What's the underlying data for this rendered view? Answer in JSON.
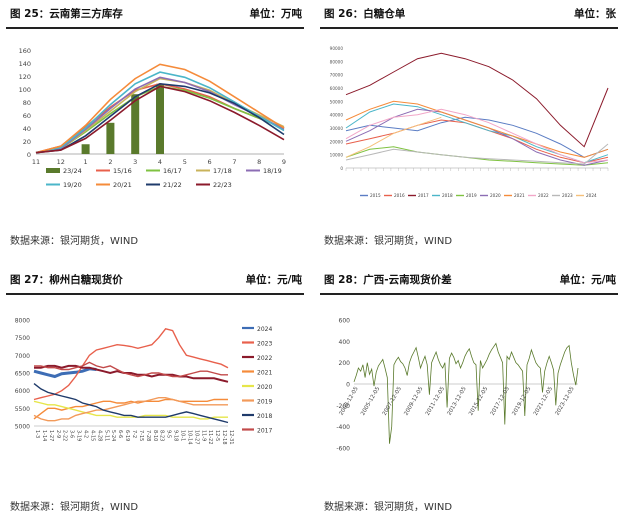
{
  "panels": {
    "p25": {
      "title": "图 25：云南第三方库存",
      "unit": "单位：万吨",
      "source": "数据来源：银河期货，WIND"
    },
    "p26": {
      "title": "图 26：白糖仓单",
      "unit": "单位：张",
      "source": "数据来源：银河期货，WIND"
    },
    "p27": {
      "title": "图 27：柳州白糖现货价",
      "unit": "单位：元/吨",
      "source": "数据来源：银河期货，WIND"
    },
    "p28": {
      "title": "图 28：广西-云南现货价差",
      "unit": "单位：元/吨",
      "source": "数据来源：银河期货，WIND"
    }
  },
  "chart_data": [
    {
      "id": "c25",
      "type": "line",
      "title": "",
      "categories": [
        "11",
        "12",
        "1",
        "2",
        "3",
        "4",
        "5",
        "6",
        "7",
        "8",
        "9"
      ],
      "ylim": [
        0,
        160
      ],
      "yticks": [
        0,
        20,
        40,
        60,
        80,
        100,
        120,
        140,
        160
      ],
      "grid": false,
      "legend": "bottom",
      "bar_series": {
        "name": "23/24",
        "color": "#5a7a2c",
        "values": [
          null,
          null,
          15,
          48,
          92,
          108,
          null,
          null,
          null,
          null,
          null
        ]
      },
      "series": [
        {
          "name": "15/16",
          "color": "#e8604c",
          "values": [
            2,
            12,
            42,
            72,
            98,
            108,
            100,
            88,
            70,
            55,
            40
          ]
        },
        {
          "name": "16/17",
          "color": "#7fc241",
          "values": [
            2,
            8,
            34,
            62,
            88,
            104,
            98,
            86,
            70,
            55,
            40
          ]
        },
        {
          "name": "17/18",
          "color": "#c9b35b",
          "values": [
            2,
            8,
            36,
            66,
            96,
            116,
            110,
            98,
            78,
            60,
            42
          ]
        },
        {
          "name": "18/19",
          "color": "#8c6db4",
          "values": [
            2,
            8,
            38,
            70,
            100,
            118,
            110,
            96,
            76,
            58,
            38
          ]
        },
        {
          "name": "19/20",
          "color": "#4bb6c9",
          "values": [
            2,
            10,
            40,
            76,
            108,
            126,
            118,
            102,
            80,
            58,
            36
          ]
        },
        {
          "name": "20/21",
          "color": "#f58b3a",
          "values": [
            2,
            12,
            44,
            84,
            116,
            138,
            130,
            112,
            88,
            64,
            40
          ]
        },
        {
          "name": "21/22",
          "color": "#1f3b6b",
          "values": [
            2,
            6,
            28,
            58,
            88,
            108,
            104,
            94,
            78,
            56,
            30
          ]
        },
        {
          "name": "22/23",
          "color": "#8b1a2b",
          "values": [
            2,
            6,
            24,
            52,
            82,
            104,
            96,
            82,
            64,
            44,
            22
          ]
        }
      ]
    },
    {
      "id": "c26",
      "type": "line",
      "title": "",
      "ylim": [
        0,
        90000
      ],
      "yticks": [
        0,
        10000,
        20000,
        30000,
        40000,
        50000,
        60000,
        70000,
        80000,
        90000
      ],
      "grid": false,
      "legend": "bottom",
      "series": [
        {
          "name": "2015",
          "color": "#5b7dc4",
          "values": [
            28000,
            32000,
            30000,
            28000,
            34000,
            38000,
            36000,
            32000,
            26000,
            18000,
            8000,
            14000
          ]
        },
        {
          "name": "2016",
          "color": "#e8604c",
          "values": [
            18000,
            22000,
            26000,
            32000,
            36000,
            34000,
            28000,
            22000,
            14000,
            8000,
            4000,
            8000
          ]
        },
        {
          "name": "2017",
          "color": "#8b1a2b",
          "values": [
            55000,
            62000,
            72000,
            82000,
            86000,
            82000,
            76000,
            66000,
            52000,
            32000,
            16000,
            60000
          ]
        },
        {
          "name": "2018",
          "color": "#4bb6c9",
          "values": [
            30000,
            42000,
            48000,
            46000,
            40000,
            34000,
            28000,
            24000,
            16000,
            10000,
            4000,
            10000
          ]
        },
        {
          "name": "2019",
          "color": "#7fc241",
          "values": [
            8000,
            14000,
            16000,
            12000,
            10000,
            8000,
            6000,
            5000,
            4000,
            3000,
            2000,
            4000
          ]
        },
        {
          "name": "2020",
          "color": "#8c6db4",
          "values": [
            20000,
            28000,
            38000,
            44000,
            42000,
            36000,
            30000,
            22000,
            12000,
            6000,
            2000,
            6000
          ]
        },
        {
          "name": "2021",
          "color": "#f58b3a",
          "values": [
            36000,
            44000,
            50000,
            48000,
            42000,
            36000,
            30000,
            24000,
            18000,
            12000,
            8000,
            14000
          ]
        },
        {
          "name": "2022",
          "color": "#f2a6c8",
          "values": [
            22000,
            32000,
            38000,
            40000,
            44000,
            40000,
            34000,
            26000,
            18000,
            10000,
            4000,
            6000
          ]
        },
        {
          "name": "2023",
          "color": "#b8b8b8",
          "values": [
            6000,
            10000,
            14000,
            12000,
            10000,
            8000,
            7000,
            6000,
            5000,
            4000,
            3000,
            18000
          ]
        },
        {
          "name": "2024",
          "color": "#f5c07a",
          "values": [
            8000,
            16000,
            26000,
            32000,
            38000,
            null,
            null,
            null,
            null,
            null,
            null,
            null
          ]
        }
      ]
    },
    {
      "id": "c27",
      "type": "line",
      "title": "",
      "categories": [
        "1-3",
        "1-14",
        "1-27",
        "2-9",
        "2-22",
        "3-6",
        "3-19",
        "4-2",
        "4-15",
        "4-28",
        "5-11",
        "5-24",
        "6-6",
        "6-19",
        "7-2",
        "7-15",
        "7-28",
        "8-10",
        "8-23",
        "9-5",
        "9-18",
        "10-1",
        "10-14",
        "10-27",
        "11-9",
        "11-22",
        "12-5",
        "12-18",
        "12-31"
      ],
      "ylim": [
        5000,
        8000
      ],
      "yticks": [
        5000,
        5500,
        6000,
        6500,
        7000,
        7500,
        8000
      ],
      "grid": false,
      "legend": "right",
      "series": [
        {
          "name": "2024",
          "color": "#3d6db5",
          "values": [
            6550,
            6500,
            6450,
            6400,
            6480,
            6500,
            6520,
            6550,
            6620,
            6600,
            null,
            null,
            null,
            null,
            null,
            null,
            null,
            null,
            null,
            null,
            null,
            null,
            null,
            null,
            null,
            null,
            null,
            null,
            null
          ]
        },
        {
          "name": "2023",
          "color": "#e8604c",
          "values": [
            5750,
            5800,
            5850,
            5900,
            6000,
            6150,
            6400,
            6700,
            7000,
            7150,
            7200,
            7250,
            7300,
            7280,
            7250,
            7200,
            7250,
            7300,
            7500,
            7750,
            7700,
            7300,
            7000,
            6950,
            6900,
            6850,
            6800,
            6750,
            6650
          ]
        },
        {
          "name": "2022",
          "color": "#8b1a2b",
          "values": [
            6650,
            6650,
            6700,
            6700,
            6650,
            6700,
            6700,
            6650,
            6650,
            6600,
            6550,
            6500,
            6550,
            6500,
            6500,
            6450,
            6450,
            6400,
            6450,
            6450,
            6450,
            6400,
            6400,
            6350,
            6350,
            6350,
            6350,
            6300,
            6250
          ]
        },
        {
          "name": "2021",
          "color": "#f58b3a",
          "values": [
            5200,
            5350,
            5500,
            5500,
            5450,
            5500,
            5550,
            5550,
            5600,
            5650,
            5700,
            5700,
            5650,
            5650,
            5700,
            5650,
            5700,
            5700,
            5700,
            5750,
            5750,
            5700,
            5700,
            5700,
            5700,
            5700,
            5750,
            5750,
            5750
          ]
        },
        {
          "name": "2020",
          "color": "#e6e64a",
          "values": [
            5700,
            5650,
            5600,
            5600,
            5550,
            5500,
            5450,
            5400,
            5350,
            5300,
            5300,
            5300,
            5250,
            5250,
            5250,
            5250,
            5300,
            5300,
            5300,
            5300,
            5250,
            5250,
            5250,
            5250,
            5200,
            5200,
            5250,
            5250,
            5250
          ]
        },
        {
          "name": "2019",
          "color": "#f29a5a",
          "values": [
            5300,
            5200,
            5150,
            5150,
            5200,
            5200,
            5300,
            5350,
            5400,
            5450,
            5450,
            5500,
            5550,
            5600,
            5650,
            5700,
            5700,
            5750,
            5800,
            5800,
            5750,
            5700,
            5650,
            5600,
            5600,
            5600,
            5600,
            5600,
            5600
          ]
        },
        {
          "name": "2018",
          "color": "#1f3b6b",
          "values": [
            6200,
            6050,
            5950,
            5900,
            5850,
            5800,
            5750,
            5650,
            5600,
            5550,
            5450,
            5400,
            5350,
            5300,
            5300,
            5250,
            5250,
            5250,
            5250,
            5250,
            5300,
            5350,
            5400,
            5350,
            5300,
            5250,
            5200,
            5150,
            5100
          ]
        },
        {
          "name": "2017",
          "color": "#c24a4a",
          "values": [
            6700,
            6700,
            6650,
            6650,
            6600,
            6600,
            6650,
            6700,
            6800,
            6700,
            6650,
            6700,
            6600,
            6500,
            6450,
            6400,
            6450,
            6500,
            6500,
            6450,
            6400,
            6400,
            6450,
            6500,
            6550,
            6550,
            6500,
            6450,
            6450
          ]
        }
      ]
    },
    {
      "id": "c28",
      "type": "line",
      "title": "",
      "ylim": [
        -600,
        600
      ],
      "yticks": [
        -600,
        -400,
        -200,
        0,
        200,
        400,
        600
      ],
      "xtick_labels": [
        "2003-12-05",
        "2005-12-05",
        "2007-12-05",
        "2009-12-05",
        "2011-12-05",
        "2013-12-05",
        "2015-12-05",
        "2017-12-05",
        "2019-12-05",
        "2021-12-05",
        "2023-12-05"
      ],
      "grid": false,
      "series": [
        {
          "name": "",
          "color": "#5a7a2c",
          "values": [
            20,
            80,
            150,
            120,
            180,
            60,
            200,
            90,
            140,
            -20,
            110,
            170,
            200,
            230,
            150,
            60,
            -560,
            -400,
            180,
            220,
            250,
            210,
            190,
            150,
            80,
            200,
            260,
            300,
            340,
            250,
            150,
            210,
            260,
            180,
            -100,
            200,
            250,
            300,
            230,
            180,
            150,
            200,
            -220,
            240,
            290,
            250,
            190,
            220,
            150,
            200,
            260,
            300,
            330,
            260,
            200,
            180,
            -250,
            220,
            150,
            190,
            230,
            280,
            320,
            350,
            380,
            300,
            250,
            200,
            -380,
            260,
            230,
            300,
            250,
            200,
            180,
            150,
            120,
            -300,
            180,
            240,
            320,
            260,
            200,
            170,
            150,
            -80,
            120,
            200,
            260,
            200,
            130,
            -200,
            100,
            180,
            240,
            300,
            340,
            360,
            200,
            80,
            -10,
            150
          ]
        }
      ]
    }
  ]
}
